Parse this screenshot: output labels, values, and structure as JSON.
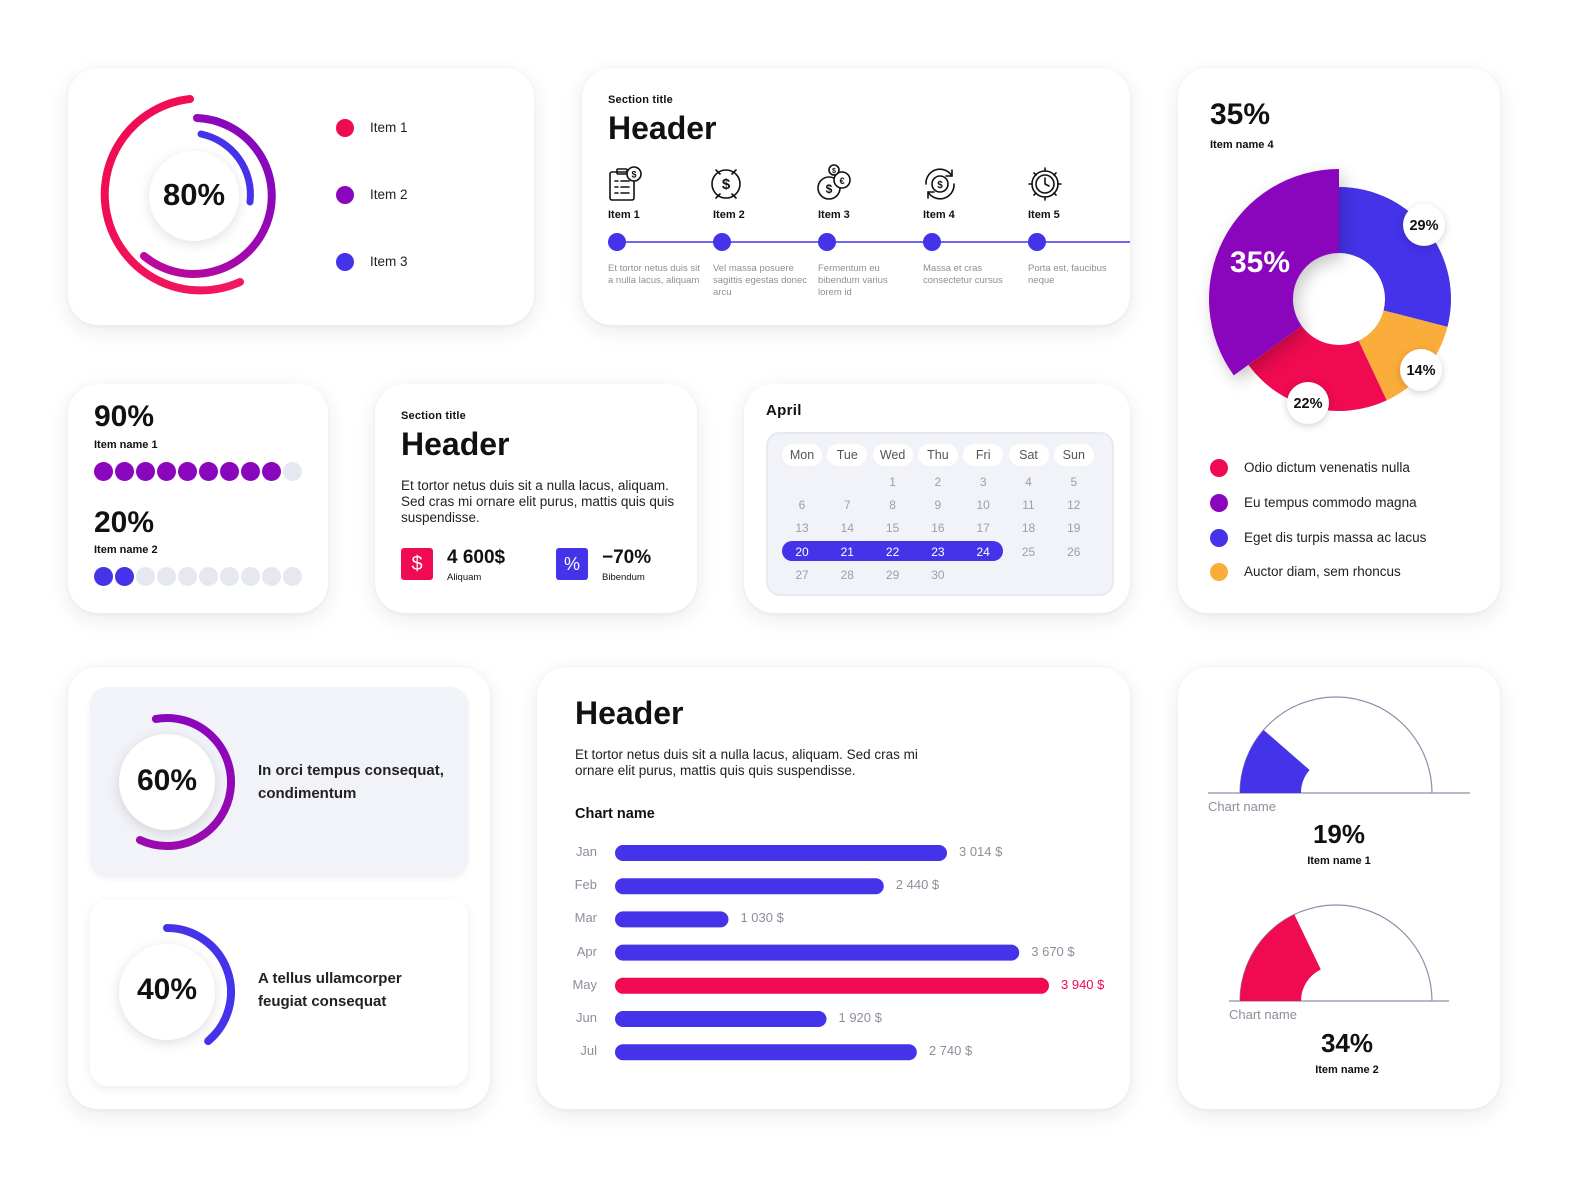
{
  "colors": {
    "pink": "#ef0a51",
    "purple": "#8a06bd",
    "blue": "#4433e8",
    "orange": "#fbad3b",
    "grey": "#e6e8ef"
  },
  "ring_card": {
    "center_label": "80%",
    "legend": [
      {
        "label": "Item 1",
        "color": "#ef0a51"
      },
      {
        "label": "Item 2",
        "color": "#8a06bd"
      },
      {
        "label": "Item 3",
        "color": "#4433e8"
      }
    ]
  },
  "timeline_card": {
    "section_title": "Section title",
    "header": "Header",
    "items": [
      {
        "icon": "checklist-dollar-icon",
        "label": "Item 1",
        "desc": "Et tortor netus duis sit a nulla lacus, aliquam"
      },
      {
        "icon": "dollar-exchange-icon",
        "label": "Item 2",
        "desc": "Vel massa posuere sagittis egestas donec arcu"
      },
      {
        "icon": "coins-euro-dollar-icon",
        "label": "Item 3",
        "desc": "Fermentum eu bibendum varius lorem id"
      },
      {
        "icon": "dollar-refresh-icon",
        "label": "Item 4",
        "desc": "Massa et cras consectetur cursus"
      },
      {
        "icon": "gear-clock-icon",
        "label": "Item 5",
        "desc": "Porta est, faucibus neque"
      }
    ]
  },
  "donut_card": {
    "top_value": "35%",
    "top_name": "Item name 4",
    "legend": [
      {
        "label": "Odio dictum venenatis nulla",
        "color": "#ef0a51"
      },
      {
        "label": "Eu tempus commodo magna",
        "color": "#8a06bd"
      },
      {
        "label": "Eget dis turpis massa ac lacus",
        "color": "#4433e8"
      },
      {
        "label": "Auctor diam, sem rhoncus",
        "color": "#fbad3b"
      }
    ]
  },
  "progress_card": {
    "item1": {
      "value": "90%",
      "name": "Item name 1",
      "filled": 9,
      "total": 10
    },
    "item2": {
      "value": "20%",
      "name": "Item name 2",
      "filled": 2,
      "total": 10
    }
  },
  "stats_card": {
    "section_title": "Section title",
    "header": "Header",
    "body": "Et tortor netus duis sit a nulla lacus, aliquam. Sed cras mi ornare elit purus, mattis quis quis suspendisse.",
    "stat1": {
      "icon_glyph": "$",
      "value": "4 600$",
      "label": "Aliquam"
    },
    "stat2": {
      "icon_glyph": "%",
      "value": "−70%",
      "label": "Bibendum"
    }
  },
  "calendar": {
    "month": "April",
    "weekdays": [
      "Mon",
      "Tue",
      "Wed",
      "Thu",
      "Fri",
      "Sat",
      "Sun"
    ],
    "weeks": [
      [
        "",
        "",
        "1",
        "2",
        "3",
        "4",
        "5"
      ],
      [
        "6",
        "7",
        "8",
        "9",
        "10",
        "11",
        "12"
      ],
      [
        "13",
        "14",
        "15",
        "16",
        "17",
        "18",
        "19"
      ],
      [
        "20",
        "21",
        "22",
        "23",
        "24",
        "25",
        "26"
      ],
      [
        "27",
        "28",
        "29",
        "30",
        "",
        "",
        ""
      ]
    ],
    "selected": [
      "20",
      "21",
      "22",
      "23",
      "24"
    ]
  },
  "circle_items": [
    {
      "value": "60%",
      "text": "In orci tempus consequat, condimentum",
      "fraction": 0.6
    },
    {
      "value": "40%",
      "text": "A tellus ullamcorper feugiat consequat",
      "fraction": 0.4
    }
  ],
  "bar_card": {
    "header": "Header",
    "body": "Et tortor netus duis sit a nulla lacus, aliquam. Sed cras mi ornare elit purus, mattis quis quis suspendisse."
  },
  "gauges": [
    {
      "caption": "Chart name",
      "value": "19%",
      "name": "Item name 1",
      "fraction": 0.19,
      "color": "#4433e8"
    },
    {
      "caption": "Chart name",
      "value": "34%",
      "name": "Item name 2",
      "fraction": 0.34,
      "color": "#ef0a51"
    }
  ],
  "chart_data": [
    {
      "type": "pie",
      "categories": [
        "Odio dictum venenatis nulla",
        "Eu tempus commodo magna",
        "Eget dis turpis massa ac lacus",
        "Auctor diam, sem rhoncus"
      ],
      "values": [
        22,
        35,
        29,
        14
      ],
      "labels": [
        "22%",
        "35%",
        "29%",
        "14%"
      ]
    },
    {
      "type": "bar",
      "title": "Chart name",
      "categories": [
        "Jan",
        "Feb",
        "Mar",
        "Apr",
        "May",
        "Jun",
        "Jul"
      ],
      "values": [
        3014,
        2440,
        1030,
        3670,
        3940,
        1920,
        2740
      ],
      "value_labels": [
        "3 014 $",
        "2 440 $",
        "1 030 $",
        "3 670 $",
        "3 940 $",
        "1 920 $",
        "2 740 $"
      ],
      "highlight": "May"
    }
  ]
}
